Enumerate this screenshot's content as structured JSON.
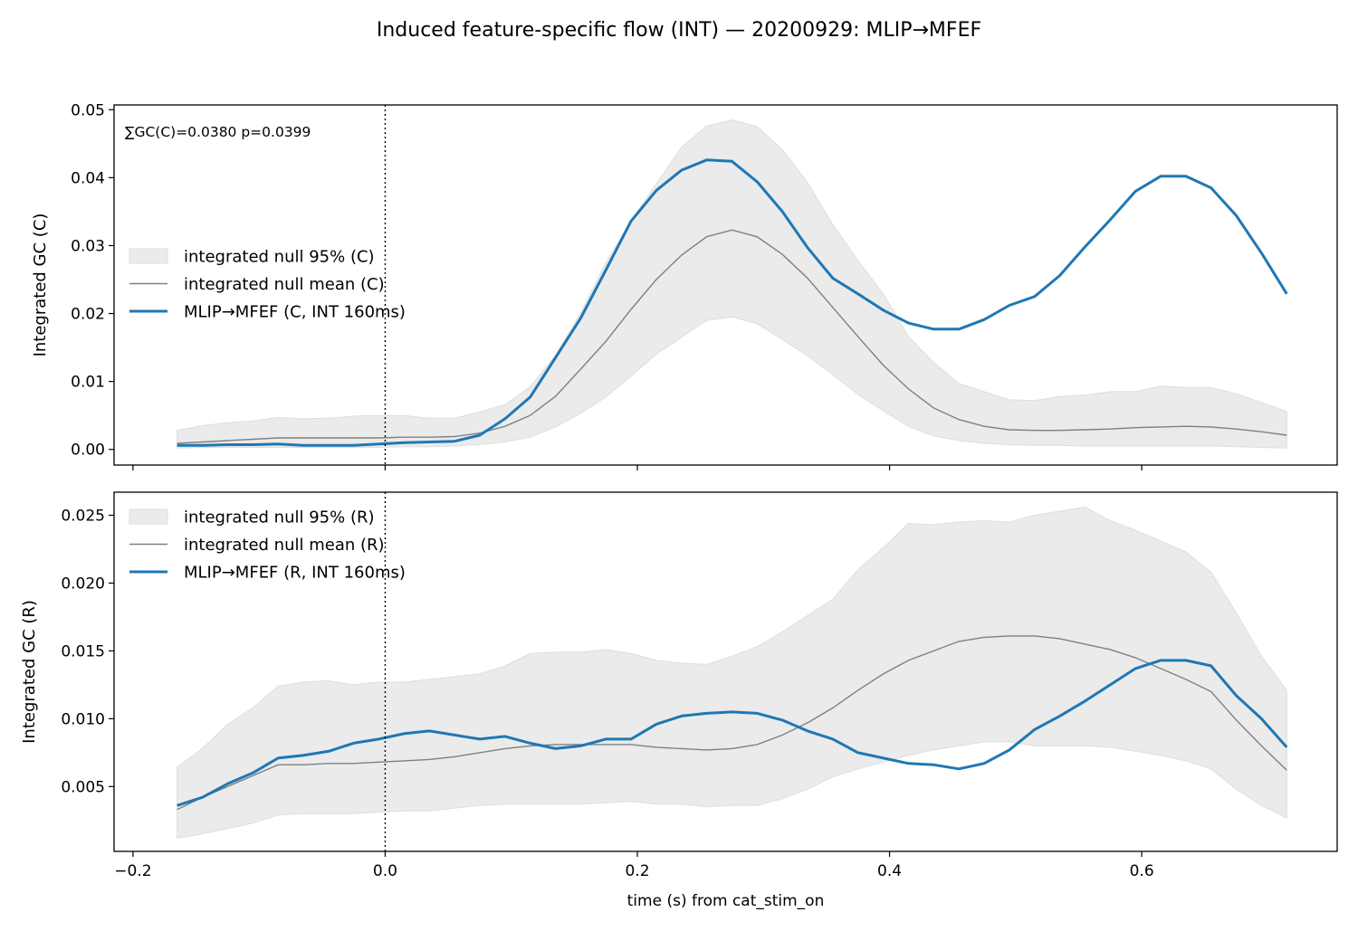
{
  "figure": {
    "title": "Induced feature-specific flow (INT) — 20200929: MLIP→MFEF"
  },
  "colors": {
    "line": "#1f77b4",
    "null_mean": "#808080",
    "null_band": "#ebebeb",
    "axes": "#000000"
  },
  "chart_data": [
    {
      "type": "line",
      "panel": "top",
      "title": "",
      "xlabel": "",
      "ylabel": "Integrated GC (C)",
      "annotation": "∑GC(C)=0.0380  p=0.0399",
      "xlim": [
        -0.215,
        0.755
      ],
      "ylim": [
        -0.0023,
        0.0507
      ],
      "xticks": [
        -0.2,
        0.0,
        0.2,
        0.4,
        0.6
      ],
      "xtick_labels": [],
      "yticks": [
        0.0,
        0.01,
        0.02,
        0.03,
        0.04,
        0.05
      ],
      "ytick_labels": [
        "0.00",
        "0.01",
        "0.02",
        "0.03",
        "0.04",
        "0.05"
      ],
      "event_line_x": 0.0,
      "legend_position": "center-left",
      "legend": [
        "integrated null 95% (C)",
        "integrated null mean (C)",
        "MLIP→MFEF (C, INT 160ms)"
      ],
      "x": [
        -0.165,
        -0.145,
        -0.125,
        -0.105,
        -0.085,
        -0.065,
        -0.045,
        -0.025,
        -0.005,
        0.015,
        0.035,
        0.055,
        0.075,
        0.095,
        0.115,
        0.135,
        0.155,
        0.175,
        0.195,
        0.215,
        0.235,
        0.255,
        0.275,
        0.295,
        0.315,
        0.335,
        0.355,
        0.375,
        0.395,
        0.415,
        0.435,
        0.455,
        0.475,
        0.495,
        0.515,
        0.535,
        0.555,
        0.575,
        0.595,
        0.615,
        0.635,
        0.655,
        0.675,
        0.695,
        0.715
      ],
      "series": [
        {
          "name": "MLIP→MFEF (C, INT 160ms)",
          "values": [
            0.0006,
            0.0006,
            0.0007,
            0.0007,
            0.0008,
            0.0006,
            0.0006,
            0.0006,
            0.0008,
            0.001,
            0.0011,
            0.0012,
            0.0021,
            0.0045,
            0.0077,
            0.0135,
            0.0193,
            0.0264,
            0.0336,
            0.0381,
            0.0411,
            0.0426,
            0.0424,
            0.0394,
            0.035,
            0.0297,
            0.0252,
            0.0229,
            0.0205,
            0.0186,
            0.0177,
            0.0177,
            0.0191,
            0.0212,
            0.0225,
            0.0256,
            0.0298,
            0.0338,
            0.038,
            0.0402,
            0.0402,
            0.0385,
            0.0344,
            0.0289,
            0.0229
          ]
        }
      ],
      "null_mean": {
        "name": "integrated null mean (C)",
        "values": [
          0.0009,
          0.0011,
          0.0013,
          0.0015,
          0.0017,
          0.0017,
          0.0017,
          0.0017,
          0.0017,
          0.0018,
          0.0018,
          0.0019,
          0.0024,
          0.0034,
          0.005,
          0.0078,
          0.0118,
          0.0159,
          0.0206,
          0.025,
          0.0286,
          0.0313,
          0.0323,
          0.0313,
          0.0287,
          0.0252,
          0.0209,
          0.0166,
          0.0124,
          0.0089,
          0.0061,
          0.0044,
          0.0034,
          0.0029,
          0.0028,
          0.0028,
          0.0029,
          0.003,
          0.0032,
          0.0033,
          0.0034,
          0.0033,
          0.003,
          0.0026,
          0.0021
        ]
      },
      "null_band": {
        "name": "integrated null 95% (C)",
        "lower": [
          0.0002,
          0.0003,
          0.0003,
          0.0003,
          0.0003,
          0.0003,
          0.0003,
          0.0003,
          0.0003,
          0.0004,
          0.0004,
          0.0005,
          0.0007,
          0.0011,
          0.0018,
          0.0033,
          0.0053,
          0.0077,
          0.0108,
          0.014,
          0.0165,
          0.019,
          0.0195,
          0.0185,
          0.0162,
          0.0138,
          0.011,
          0.0081,
          0.0057,
          0.0034,
          0.002,
          0.0013,
          0.0009,
          0.0007,
          0.0006,
          0.0006,
          0.0005,
          0.0005,
          0.0005,
          0.0005,
          0.0005,
          0.0005,
          0.0004,
          0.0003,
          0.0002
        ],
        "upper": [
          0.0028,
          0.0035,
          0.0039,
          0.0042,
          0.0047,
          0.0045,
          0.0046,
          0.0049,
          0.005,
          0.005,
          0.0046,
          0.0046,
          0.0055,
          0.0066,
          0.0092,
          0.0138,
          0.0201,
          0.0275,
          0.0336,
          0.0391,
          0.0445,
          0.0476,
          0.0485,
          0.0475,
          0.0441,
          0.0393,
          0.0331,
          0.0278,
          0.0229,
          0.0166,
          0.0128,
          0.0097,
          0.0085,
          0.0073,
          0.0072,
          0.0078,
          0.008,
          0.0085,
          0.0085,
          0.0093,
          0.0091,
          0.0091,
          0.0082,
          0.0069,
          0.0056
        ]
      }
    },
    {
      "type": "line",
      "panel": "bottom",
      "title": "",
      "xlabel": "time (s) from cat_stim_on",
      "ylabel": "Integrated GC (R)",
      "annotation": "",
      "xlim": [
        -0.215,
        0.755
      ],
      "ylim": [
        0.00022,
        0.0267
      ],
      "xticks": [
        -0.2,
        0.0,
        0.2,
        0.4,
        0.6
      ],
      "xtick_labels": [
        "−0.2",
        "0.0",
        "0.2",
        "0.4",
        "0.6"
      ],
      "yticks": [
        0.005,
        0.01,
        0.015,
        0.02,
        0.025
      ],
      "ytick_labels": [
        "0.005",
        "0.010",
        "0.015",
        "0.020",
        "0.025"
      ],
      "event_line_x": 0.0,
      "legend_position": "upper-left",
      "legend": [
        "integrated null 95% (R)",
        "integrated null mean (R)",
        "MLIP→MFEF (R, INT 160ms)"
      ],
      "x": [
        -0.165,
        -0.145,
        -0.125,
        -0.105,
        -0.085,
        -0.065,
        -0.045,
        -0.025,
        -0.005,
        0.015,
        0.035,
        0.055,
        0.075,
        0.095,
        0.115,
        0.135,
        0.155,
        0.175,
        0.195,
        0.215,
        0.235,
        0.255,
        0.275,
        0.295,
        0.315,
        0.335,
        0.355,
        0.375,
        0.395,
        0.415,
        0.435,
        0.455,
        0.475,
        0.495,
        0.515,
        0.535,
        0.555,
        0.575,
        0.595,
        0.615,
        0.635,
        0.655,
        0.675,
        0.695,
        0.715
      ],
      "series": [
        {
          "name": "MLIP→MFEF (R, INT 160ms)",
          "values": [
            0.0036,
            0.0042,
            0.0052,
            0.006,
            0.0071,
            0.0073,
            0.0076,
            0.0082,
            0.0085,
            0.0089,
            0.0091,
            0.0088,
            0.0085,
            0.0087,
            0.0082,
            0.0078,
            0.008,
            0.0085,
            0.0085,
            0.0096,
            0.0102,
            0.0104,
            0.0105,
            0.0104,
            0.0099,
            0.0091,
            0.0085,
            0.0075,
            0.0071,
            0.0067,
            0.0066,
            0.0063,
            0.0067,
            0.0077,
            0.0092,
            0.0102,
            0.0113,
            0.0125,
            0.0137,
            0.0143,
            0.0143,
            0.0139,
            0.0117,
            0.01,
            0.0079
          ]
        }
      ],
      "null_mean": {
        "name": "integrated null mean (R)",
        "values": [
          0.0033,
          0.0042,
          0.005,
          0.0058,
          0.0066,
          0.0066,
          0.0067,
          0.0067,
          0.0068,
          0.0069,
          0.007,
          0.0072,
          0.0075,
          0.0078,
          0.008,
          0.0081,
          0.0081,
          0.0081,
          0.0081,
          0.0079,
          0.0078,
          0.0077,
          0.0078,
          0.0081,
          0.0088,
          0.0097,
          0.0108,
          0.0121,
          0.0133,
          0.0143,
          0.015,
          0.0157,
          0.016,
          0.0161,
          0.0161,
          0.0159,
          0.0155,
          0.0151,
          0.0145,
          0.0137,
          0.0129,
          0.012,
          0.0099,
          0.008,
          0.0062
        ]
      },
      "null_band": {
        "name": "integrated null 95% (R)",
        "lower": [
          0.0012,
          0.0015,
          0.0019,
          0.0023,
          0.0029,
          0.003,
          0.003,
          0.003,
          0.0031,
          0.0032,
          0.0032,
          0.0034,
          0.0036,
          0.0037,
          0.0037,
          0.0037,
          0.0037,
          0.0038,
          0.0039,
          0.0037,
          0.0037,
          0.0035,
          0.0036,
          0.0036,
          0.0041,
          0.0048,
          0.0057,
          0.0063,
          0.0068,
          0.0073,
          0.0077,
          0.008,
          0.0083,
          0.0083,
          0.008,
          0.008,
          0.008,
          0.0079,
          0.0076,
          0.0073,
          0.0069,
          0.0063,
          0.0048,
          0.0036,
          0.0027
        ],
        "upper": [
          0.0064,
          0.0078,
          0.0096,
          0.0108,
          0.0124,
          0.0127,
          0.0128,
          0.0125,
          0.0127,
          0.0127,
          0.0129,
          0.0131,
          0.0133,
          0.0139,
          0.0148,
          0.0149,
          0.0149,
          0.0151,
          0.0148,
          0.0143,
          0.0141,
          0.014,
          0.0146,
          0.0153,
          0.0164,
          0.0176,
          0.0188,
          0.021,
          0.0226,
          0.0244,
          0.0243,
          0.0245,
          0.0246,
          0.0245,
          0.025,
          0.0253,
          0.0256,
          0.0246,
          0.0239,
          0.0231,
          0.0223,
          0.0208,
          0.0178,
          0.0146,
          0.0121
        ]
      }
    }
  ]
}
